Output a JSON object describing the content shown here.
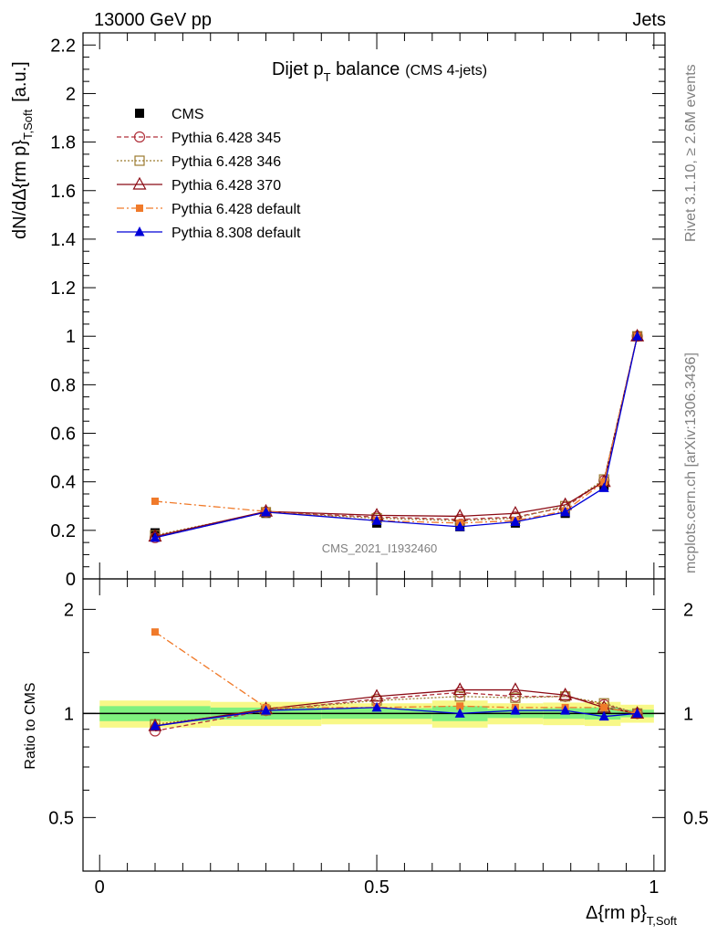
{
  "header": {
    "left": "13000 GeV pp",
    "right": "Jets"
  },
  "side_labels": {
    "rivet": "Rivet 3.1.10, ≥ 2.6M events",
    "mcplots": "mcplots.cern.ch [arXiv:1306.3436]"
  },
  "watermark": "CMS_2021_I1932460",
  "colors": {
    "cms": "#000000",
    "p345": "#b0303a",
    "p346": "#9b7a2e",
    "p370": "#8b0a14",
    "pdefault": "#f07a2a",
    "py8": "#0000d8",
    "band_inner": "#7ff07f",
    "band_outer": "#f8f888"
  },
  "chart_data": [
    {
      "type": "line",
      "title": "Dijet p_T balance",
      "title_parts": {
        "main": "Dijet p",
        "sub": "T",
        "tail": " balance",
        "note": "(CMS 4-jets)"
      },
      "ylabel_parts": {
        "main": "dN/dΔ{rm p}",
        "sub": "T,Soft",
        "unit": "[a.u.]"
      },
      "xlim": [
        -0.03,
        1.02
      ],
      "ylim": [
        0,
        2.25
      ],
      "yticks": [
        0,
        0.2,
        0.4,
        0.6,
        0.8,
        1,
        1.2,
        1.4,
        1.6,
        1.8,
        2,
        2.2
      ],
      "ytick_labels": [
        "0",
        "0.2",
        "0.4",
        "0.6",
        "0.8",
        "1",
        "1.2",
        "1.4",
        "1.6",
        "1.8",
        "2",
        "2.2"
      ],
      "x": [
        0.1,
        0.3,
        0.5,
        0.65,
        0.75,
        0.84,
        0.91,
        0.97
      ],
      "legend_position": "top-left",
      "series": [
        {
          "name": "CMS",
          "style": "data",
          "values": [
            0.19,
            0.27,
            0.23,
            0.215,
            0.23,
            0.27,
            0.385,
            1.0
          ]
        },
        {
          "name": "Pythia 6.428 345",
          "style": "p345",
          "values": [
            0.17,
            0.275,
            0.255,
            0.245,
            0.255,
            0.295,
            0.405,
            1.0
          ]
        },
        {
          "name": "Pythia 6.428 346",
          "style": "p346",
          "values": [
            0.18,
            0.275,
            0.25,
            0.24,
            0.25,
            0.3,
            0.41,
            1.0
          ]
        },
        {
          "name": "Pythia 6.428 370",
          "style": "p370",
          "values": [
            0.175,
            0.278,
            0.262,
            0.258,
            0.27,
            0.305,
            0.4,
            1.0
          ]
        },
        {
          "name": "Pythia 6.428 default",
          "style": "pdefault",
          "values": [
            0.32,
            0.278,
            0.24,
            0.23,
            0.24,
            0.28,
            0.4,
            1.0
          ]
        },
        {
          "name": "Pythia 8.308 default",
          "style": "py8",
          "values": [
            0.17,
            0.275,
            0.24,
            0.215,
            0.235,
            0.275,
            0.375,
            1.0
          ]
        }
      ]
    },
    {
      "type": "line",
      "ylabel": "Ratio to CMS",
      "xlabel_parts": {
        "main": "Δ{rm p}",
        "sub": "T,Soft"
      },
      "xlim": [
        -0.03,
        1.02
      ],
      "ylim": [
        0.35,
        2.45
      ],
      "log_y": true,
      "yticks": [
        0.5,
        1,
        2
      ],
      "ytick_labels": [
        "0.5",
        "1",
        "2"
      ],
      "xticks": [
        0,
        0.5,
        1
      ],
      "xtick_labels": [
        "0",
        "0.5",
        "1"
      ],
      "x": [
        0.1,
        0.3,
        0.5,
        0.65,
        0.75,
        0.84,
        0.91,
        0.97
      ],
      "band_edges": [
        0,
        0.2,
        0.4,
        0.6,
        0.7,
        0.8,
        0.875,
        0.94,
        1.0
      ],
      "band_inner": [
        0.05,
        0.04,
        0.035,
        0.05,
        0.03,
        0.035,
        0.04,
        0.025
      ],
      "band_outer": [
        0.09,
        0.08,
        0.07,
        0.09,
        0.07,
        0.075,
        0.08,
        0.06
      ],
      "series": [
        {
          "name": "Pythia 6.428 345",
          "style": "p345",
          "values": [
            0.89,
            1.02,
            1.1,
            1.15,
            1.12,
            1.12,
            1.06,
            1.0
          ]
        },
        {
          "name": "Pythia 6.428 346",
          "style": "p346",
          "values": [
            0.93,
            1.02,
            1.09,
            1.12,
            1.11,
            1.12,
            1.07,
            1.0
          ]
        },
        {
          "name": "Pythia 6.428 370",
          "style": "p370",
          "values": [
            0.92,
            1.03,
            1.12,
            1.17,
            1.17,
            1.13,
            1.04,
            1.0
          ]
        },
        {
          "name": "Pythia 6.428 default",
          "style": "pdefault",
          "values": [
            1.72,
            1.04,
            1.04,
            1.05,
            1.04,
            1.04,
            1.04,
            1.0
          ]
        },
        {
          "name": "Pythia 8.308 default",
          "style": "py8",
          "values": [
            0.92,
            1.02,
            1.04,
            1.0,
            1.02,
            1.02,
            0.98,
            1.0
          ]
        }
      ]
    }
  ]
}
